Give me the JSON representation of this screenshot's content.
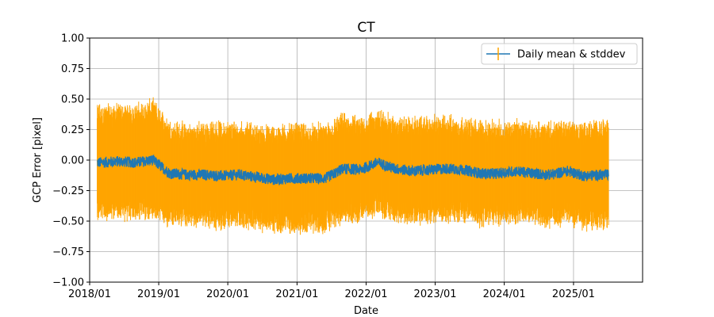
{
  "chart_data": {
    "type": "line",
    "title": "CT",
    "xlabel": "Date",
    "ylabel": "GCP Error [pixel]",
    "xlim": [
      "2018-01-01",
      "2026-01-01"
    ],
    "ylim": [
      -1.0,
      1.0
    ],
    "x_ticks": [
      "2018/01",
      "2019/01",
      "2020/01",
      "2021/01",
      "2022/01",
      "2023/01",
      "2024/01",
      "2025/01"
    ],
    "y_ticks": [
      "1.00",
      "0.75",
      "0.50",
      "0.25",
      "0.00",
      "−0.25",
      "−0.50",
      "−0.75",
      "−1.00"
    ],
    "y_tick_values": [
      1.0,
      0.75,
      0.5,
      0.25,
      0.0,
      -0.25,
      -0.5,
      -0.75,
      -1.0
    ],
    "grid": true,
    "legend": {
      "position": "top-right",
      "entries": [
        "Daily mean & stddev"
      ]
    },
    "series": [
      {
        "name": "Daily mean & stddev",
        "mean_color": "#1f77b4",
        "errorbar_color": "#ffa500",
        "x": [
          "2018-03-01",
          "2018-06-01",
          "2018-09-01",
          "2018-12-01",
          "2019-03-01",
          "2019-06-01",
          "2019-09-01",
          "2019-12-01",
          "2020-03-01",
          "2020-06-01",
          "2020-09-01",
          "2020-12-01",
          "2021-03-01",
          "2021-06-01",
          "2021-09-01",
          "2021-12-01",
          "2022-03-01",
          "2022-06-01",
          "2022-09-01",
          "2022-12-01",
          "2023-03-01",
          "2023-06-01",
          "2023-09-01",
          "2023-12-01",
          "2024-03-01",
          "2024-06-01",
          "2024-09-01",
          "2024-12-01",
          "2025-03-01",
          "2025-06-01"
        ],
        "mean": [
          -0.02,
          -0.01,
          -0.02,
          0.0,
          -0.11,
          -0.12,
          -0.12,
          -0.13,
          -0.12,
          -0.14,
          -0.16,
          -0.15,
          -0.15,
          -0.15,
          -0.07,
          -0.08,
          -0.02,
          -0.07,
          -0.09,
          -0.08,
          -0.07,
          -0.08,
          -0.11,
          -0.11,
          -0.09,
          -0.11,
          -0.12,
          -0.09,
          -0.13,
          -0.12
        ],
        "stddev": [
          0.38,
          0.37,
          0.38,
          0.4,
          0.34,
          0.32,
          0.33,
          0.35,
          0.34,
          0.33,
          0.34,
          0.36,
          0.34,
          0.35,
          0.35,
          0.33,
          0.34,
          0.33,
          0.34,
          0.34,
          0.34,
          0.33,
          0.34,
          0.33,
          0.33,
          0.32,
          0.33,
          0.33,
          0.34,
          0.36
        ]
      }
    ]
  }
}
